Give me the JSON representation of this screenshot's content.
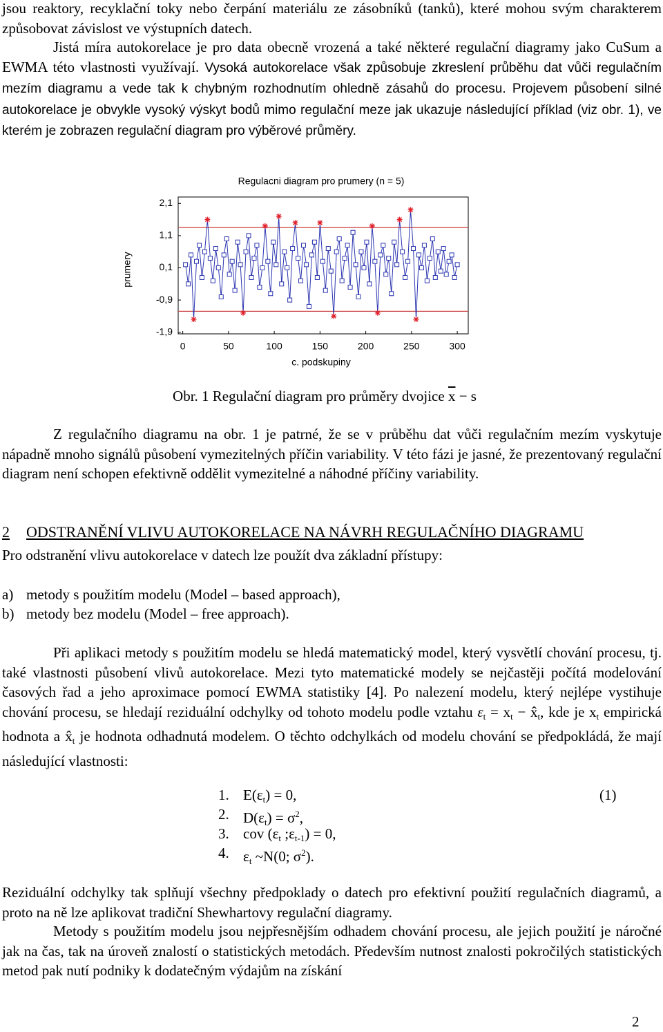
{
  "intro": {
    "parts": [
      {
        "text": "jsou reaktory, recyklační toky nebo čerpání materiálu ze zásobníků (tanků), které mohou svým charakterem způsobovat závislost ve výstupních datech."
      }
    ]
  },
  "intro2": {
    "parts": [
      {
        "text": "Jistá míra autokorelace je pro data obecně vrozená a také některé regulační diagramy jako CuSum a EWMA této vlastnosti využívají. "
      },
      {
        "sans": "Vysoká autokorelace však způsobuje zkreslení průběhu dat vůči regulačním mezím diagramu a vede tak k chybným rozhodnutím ohledně zásahů do procesu. Projevem působení silné autokorelace je obvykle vysoký výskyt bodů mimo regulační meze jak ukazuje následující příklad (viz obr. 1), ve kterém je zobrazen regulační diagram pro výběrové průměry."
      }
    ]
  },
  "chart_data": {
    "type": "line",
    "title": "Regulacni diagram pro prumery (n = 5)",
    "x_label": "c. podskupiny",
    "y_label": "prumery",
    "x": [
      3,
      6,
      9,
      12,
      15,
      18,
      21,
      24,
      27,
      30,
      33,
      36,
      39,
      42,
      45,
      48,
      51,
      54,
      57,
      60,
      63,
      66,
      69,
      72,
      75,
      78,
      81,
      84,
      87,
      90,
      93,
      96,
      99,
      102,
      105,
      108,
      111,
      114,
      117,
      120,
      123,
      126,
      129,
      132,
      135,
      138,
      141,
      144,
      147,
      150,
      153,
      156,
      159,
      162,
      165,
      168,
      171,
      174,
      177,
      180,
      183,
      186,
      189,
      192,
      195,
      198,
      201,
      204,
      207,
      210,
      213,
      216,
      219,
      222,
      225,
      228,
      231,
      234,
      237,
      240,
      243,
      246,
      249,
      252,
      255,
      258,
      261,
      264,
      267,
      270,
      273,
      276,
      279,
      282,
      285,
      288,
      291,
      294,
      297,
      300
    ],
    "values": [
      0.2,
      -0.4,
      0.5,
      -1.5,
      0.3,
      0.8,
      -0.2,
      0.6,
      1.6,
      0.4,
      -0.3,
      0.7,
      0.1,
      -0.8,
      0.5,
      1.0,
      -0.1,
      0.3,
      -0.6,
      0.9,
      0.2,
      -1.3,
      0.6,
      1.1,
      -0.2,
      0.4,
      0.8,
      -0.5,
      0.1,
      1.4,
      0.3,
      -0.7,
      0.9,
      0.2,
      1.7,
      -0.4,
      0.6,
      0.1,
      -0.9,
      0.7,
      1.5,
      0.4,
      -0.3,
      0.8,
      0.2,
      -1.1,
      0.5,
      0.9,
      -0.2,
      1.5,
      0.3,
      -0.6,
      0.7,
      0.0,
      -1.4,
      0.6,
      1.0,
      -0.3,
      0.4,
      0.8,
      -0.5,
      1.2,
      0.2,
      -0.8,
      0.6,
      0.1,
      0.9,
      -0.4,
      1.4,
      0.3,
      -1.3,
      0.5,
      0.8,
      -0.1,
      0.4,
      -0.7,
      0.9,
      0.2,
      1.6,
      0.6,
      -0.2,
      0.3,
      1.9,
      0.7,
      -1.5,
      0.5,
      0.1,
      0.8,
      -0.3,
      0.4,
      1.0,
      -0.2,
      0.6,
      0.0,
      0.7,
      -0.1,
      0.3,
      0.5,
      -0.2,
      0.2
    ],
    "color": "#2b35b0",
    "out_color": "#e0202a",
    "limits": [
      1.35,
      -1.25
    ],
    "limit_color": "#d04a4a",
    "xlim": [
      -5,
      312
    ],
    "ylim": [
      -1.95,
      2.3
    ],
    "xticks": [
      0,
      50,
      100,
      150,
      200,
      250,
      300
    ],
    "yticks": [
      {
        "value": 2.1,
        "label": "2,1"
      },
      {
        "value": 1.1,
        "label": "1,1"
      },
      {
        "value": 0.1,
        "label": "0,1"
      },
      {
        "value": -0.9,
        "label": "-0,9"
      },
      {
        "value": -1.9,
        "label": "-1,9"
      }
    ]
  },
  "caption": {
    "parts": [
      {
        "text": "Obr. 1 Regulační diagram pro průměry dvojice "
      },
      {
        "overline": "x"
      },
      {
        "text": " − s"
      }
    ]
  },
  "para3": {
    "parts": [
      {
        "text": "Z regulačního diagramu na obr. 1 je patrné, že se v průběhu dat vůči regulačním mezím vyskytuje nápadně mnoho signálů působení vymezitelných příčin variability. V této fázi je jasné, že prezentovaný regulační diagram není schopen efektivně oddělit vymezitelné a náhodné příčiny variability."
      }
    ]
  },
  "heading": {
    "number": "2",
    "title": "ODSTRANĚNÍ VLIVU AUTOKORELACE NA NÁVRH REGULAČNÍHO DIAGRAMU"
  },
  "para4": {
    "parts": [
      {
        "text": "Pro odstranění vlivu autokorelace v datech lze použít dva základní přístupy:"
      }
    ]
  },
  "list": [
    {
      "marker": "a)",
      "text": "metody s použitím modelu (Model – based approach),"
    },
    {
      "marker": "b)",
      "text": "metody bez modelu (Model – free approach)."
    }
  ],
  "para5": {
    "parts": [
      {
        "text": "Při aplikaci metody s použitím modelu se hledá matematický model, který vysvětlí chování procesu, tj. také vlastnosti působení vlivů autokorelace. Mezi tyto matematické modely se nejčastěji počítá modelování časových řad a jeho aproximace pomocí EWMA statistiky [4]. Po nalezení modelu, který nejlépe vystihuje chování procesu, se hledají reziduální odchylky od tohoto modelu podle vztahu "
      },
      {
        "italic": "ε"
      },
      {
        "sub": "t"
      },
      {
        "text": " = x"
      },
      {
        "sub": "t"
      },
      {
        "text": " − x̂"
      },
      {
        "sub": "t"
      },
      {
        "text": ", kde je x"
      },
      {
        "sub": "t"
      },
      {
        "text": " empirická hodnota a x̂"
      },
      {
        "sub": "t"
      },
      {
        "text": " je hodnota odhadnutá modelem. O těchto odchylkách od modelu chování se předpokládá, že mají následující vlastnosti:"
      }
    ]
  },
  "equations": [
    {
      "number": "1.",
      "parts": [
        {
          "text": "E(ε"
        },
        {
          "sub": "t"
        },
        {
          "text": ") = 0,"
        }
      ]
    },
    {
      "number": "2.",
      "parts": [
        {
          "text": "D(ε"
        },
        {
          "sub": "t"
        },
        {
          "text": ") = σ"
        },
        {
          "sup": "2"
        },
        {
          "text": ","
        }
      ]
    },
    {
      "number": "3.",
      "parts": [
        {
          "text": "cov (ε"
        },
        {
          "sub": "t"
        },
        {
          "text": " ;ε"
        },
        {
          "sub": "t-1"
        },
        {
          "text": ") = 0,"
        }
      ]
    },
    {
      "number": "4.",
      "parts": [
        {
          "text": "ε"
        },
        {
          "sub": "t"
        },
        {
          "text": " ~N(0; σ"
        },
        {
          "sup": "2"
        },
        {
          "text": ")."
        }
      ]
    }
  ],
  "equation_label": "(1)",
  "para6": {
    "parts": [
      {
        "text": "Reziduální odchylky tak splňují všechny předpoklady o datech pro efektivní použití regulačních diagramů, a proto na ně lze aplikovat tradiční Shewhartovy regulační diagramy."
      }
    ]
  },
  "para7": {
    "parts": [
      {
        "text": "Metody s použitím modelu jsou nejpřesnějším odhadem chování procesu, ale jejich použití je náročné jak na čas, tak na úroveň znalostí o statistických metodách. Především nutnost znalosti pokročilých statistických metod pak nutí podniky k dodatečným výdajům na získání"
      }
    ]
  },
  "page_number": "2"
}
